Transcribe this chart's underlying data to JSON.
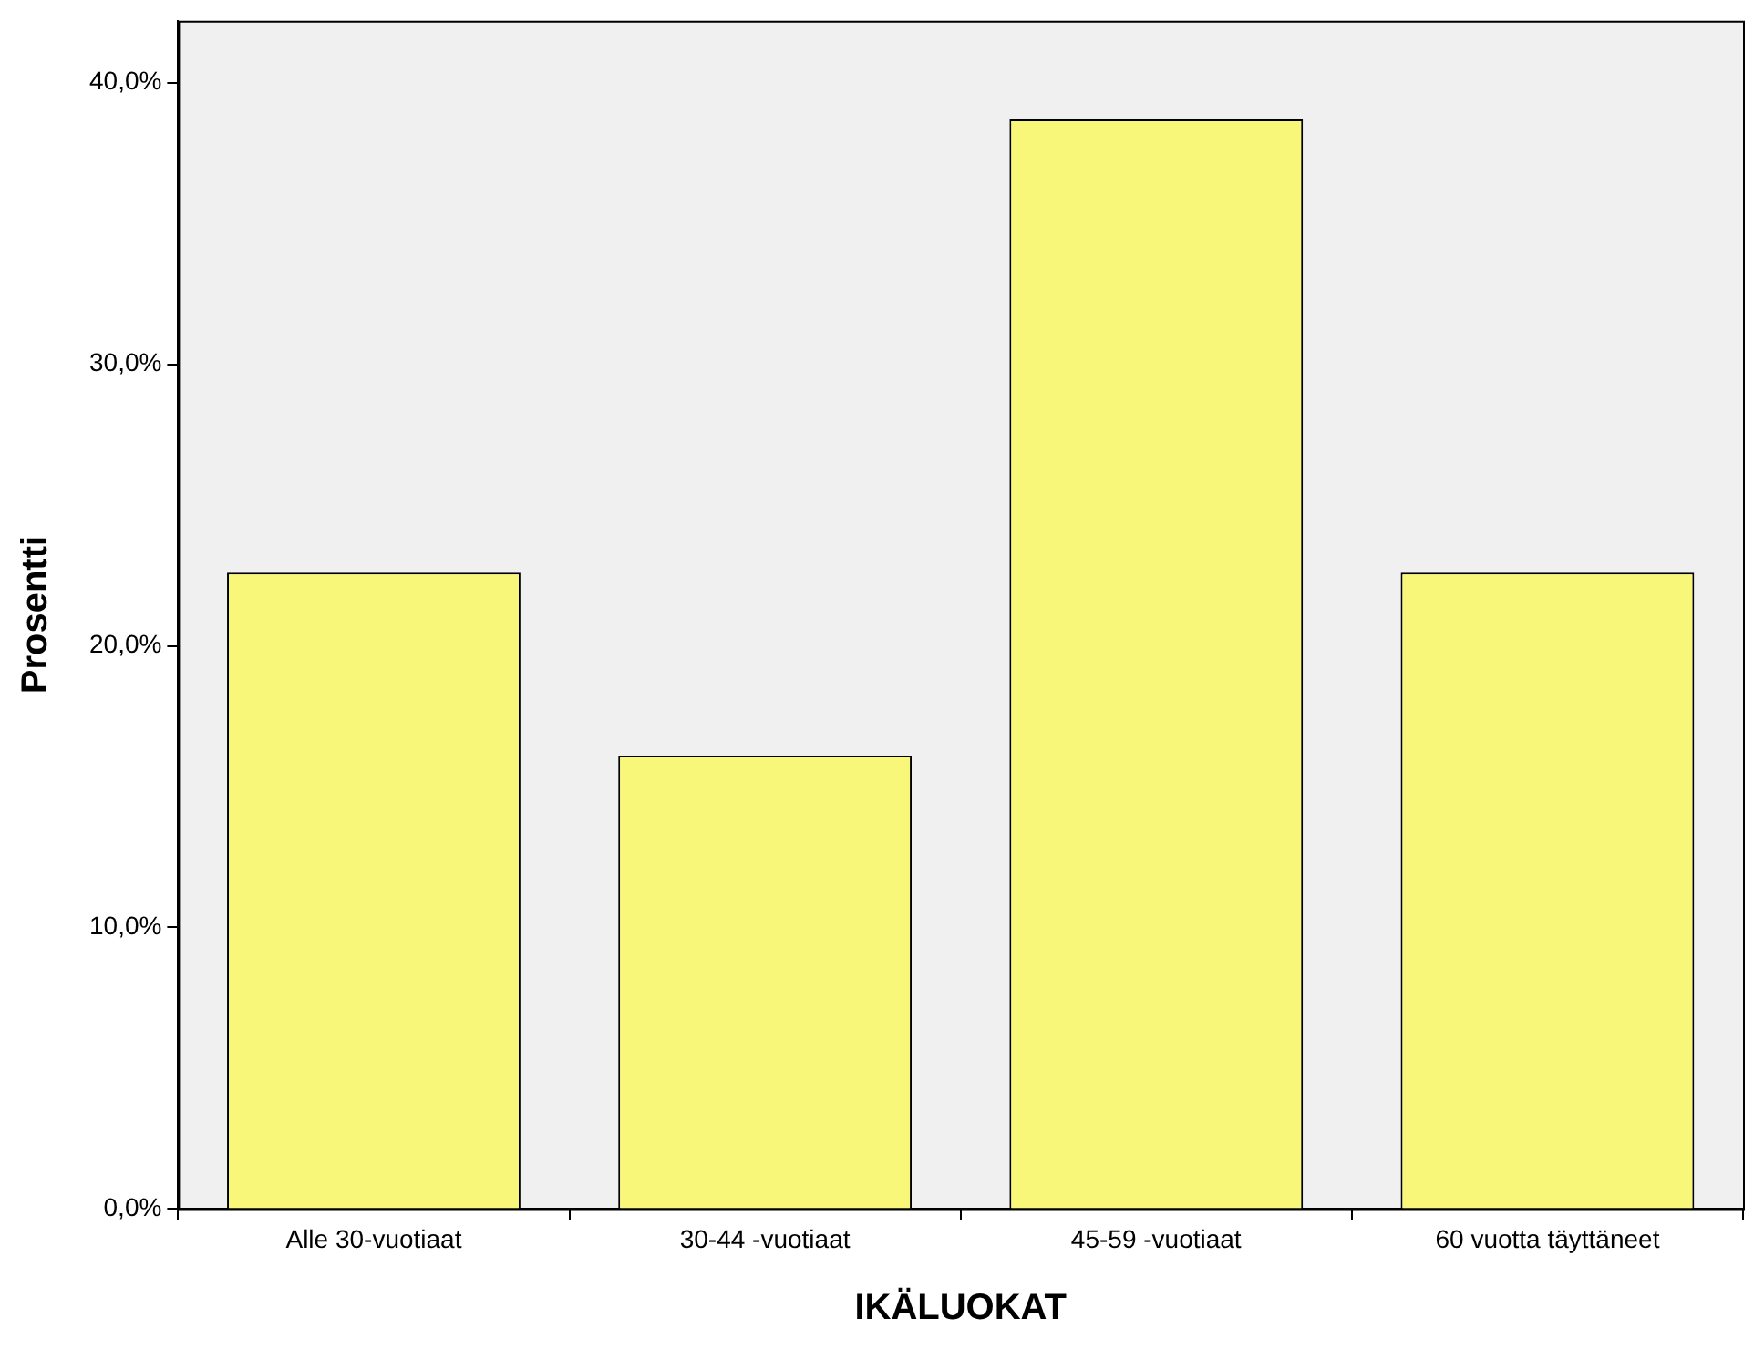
{
  "chart_data": {
    "type": "bar",
    "xlabel": "IKÄLUOKAT",
    "ylabel": "Prosentti",
    "categories": [
      "Alle 30-vuotiaat",
      "30-44 -vuotiaat",
      "45-59 -vuotiaat",
      "60 vuotta täyttäneet"
    ],
    "values": [
      22.6,
      16.1,
      38.7,
      22.6
    ],
    "color": "#f9f77a",
    "ylim": [
      0,
      42.2
    ],
    "yticks": [
      {
        "value": 0,
        "label": "0,0%"
      },
      {
        "value": 10,
        "label": "10,0%"
      },
      {
        "value": 20,
        "label": "20,0%"
      },
      {
        "value": 30,
        "label": "30,0%"
      },
      {
        "value": 40,
        "label": "40,0%"
      }
    ],
    "grid": false
  }
}
